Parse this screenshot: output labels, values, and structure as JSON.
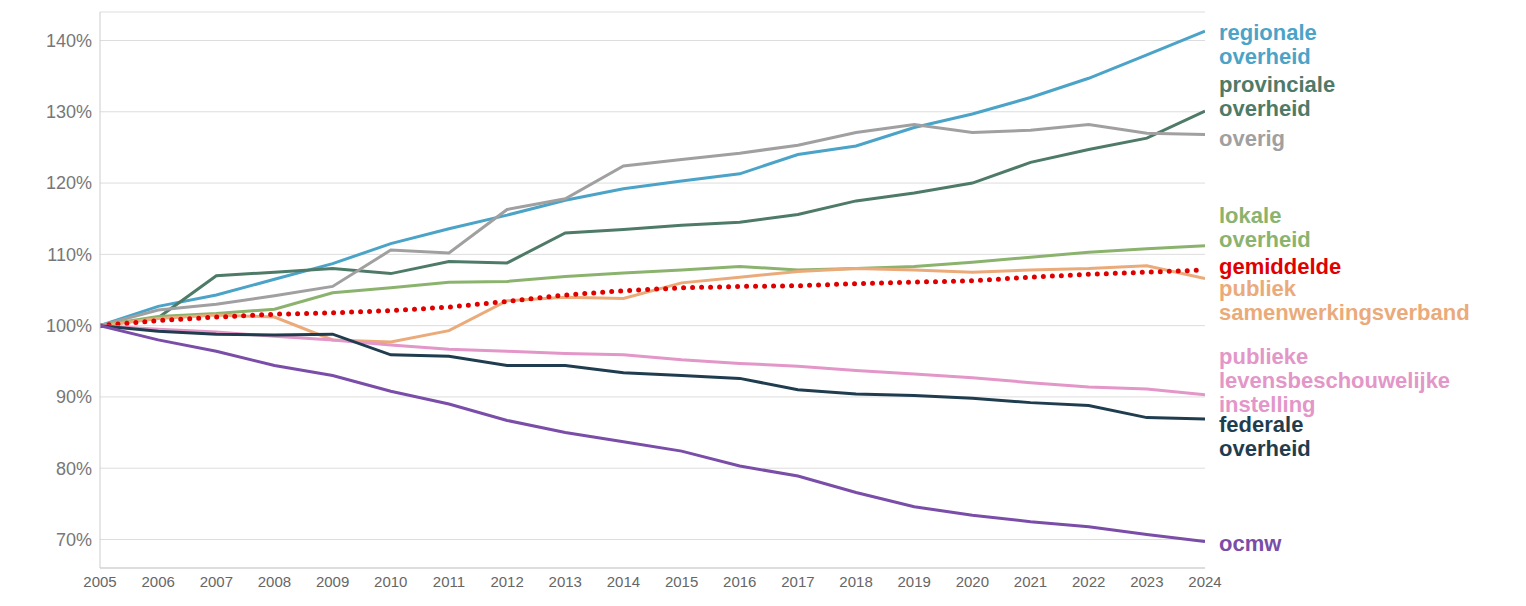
{
  "chart_data": {
    "type": "line",
    "x": [
      2005,
      2006,
      2007,
      2008,
      2009,
      2010,
      2011,
      2012,
      2013,
      2014,
      2015,
      2016,
      2017,
      2018,
      2019,
      2020,
      2021,
      2022,
      2023,
      2024
    ],
    "xlim": [
      2005,
      2024
    ],
    "xticks": [
      2005,
      2006,
      2007,
      2008,
      2009,
      2010,
      2011,
      2012,
      2013,
      2014,
      2015,
      2016,
      2017,
      2018,
      2019,
      2020,
      2021,
      2022,
      2023,
      2024
    ],
    "ylim": [
      66,
      144
    ],
    "yticks": [
      {
        "value": 70,
        "label": "70%"
      },
      {
        "value": 80,
        "label": "80%"
      },
      {
        "value": 90,
        "label": "90%"
      },
      {
        "value": 100,
        "label": "100%"
      },
      {
        "value": 110,
        "label": "110%"
      },
      {
        "value": 120,
        "label": "120%"
      },
      {
        "value": 130,
        "label": "130%"
      },
      {
        "value": 140,
        "label": "140%"
      }
    ],
    "grid": true,
    "series": [
      {
        "name": "regionale overheid",
        "color": "#4ba3c8",
        "line_style": "solid",
        "values": [
          100,
          102.7,
          104.3,
          106.5,
          108.7,
          111.5,
          113.6,
          115.5,
          117.6,
          119.2,
          120.3,
          121.3,
          124,
          125.2,
          127.8,
          129.7,
          132,
          134.7,
          138,
          141.3
        ]
      },
      {
        "name": "provinciale overheid",
        "color": "#4e7a68",
        "line_style": "solid",
        "values": [
          100,
          101.1,
          107,
          107.5,
          108,
          107.3,
          109,
          108.8,
          113,
          113.5,
          114.1,
          114.5,
          115.6,
          117.5,
          118.6,
          120,
          122.9,
          124.7,
          126.3,
          130.1
        ]
      },
      {
        "name": "overig",
        "color": "#a0a0a0",
        "line_style": "solid",
        "values": [
          100,
          102.2,
          103,
          104.2,
          105.5,
          110.6,
          110.2,
          116.3,
          117.8,
          122.4,
          123.3,
          124.2,
          125.3,
          127.1,
          128.2,
          127.1,
          127.4,
          128.2,
          127,
          126.8
        ]
      },
      {
        "name": "lokale overheid",
        "color": "#8bb36e",
        "line_style": "solid",
        "values": [
          100,
          101.3,
          101.7,
          102.3,
          104.6,
          105.3,
          106.1,
          106.2,
          106.9,
          107.4,
          107.8,
          108.3,
          107.8,
          108,
          108.3,
          108.9,
          109.6,
          110.3,
          110.8,
          111.2
        ]
      },
      {
        "name": "publiek samenwerkingsverband",
        "color": "#ebaa7a",
        "line_style": "solid",
        "values": [
          100,
          101,
          101.5,
          101.2,
          98,
          97.7,
          99.3,
          103.5,
          104,
          103.8,
          106,
          106.8,
          107.6,
          108,
          107.8,
          107.5,
          107.8,
          108,
          108.4,
          106.6
        ]
      },
      {
        "name": "gemiddelde",
        "color": "#e00000",
        "line_style": "dotted",
        "values": [
          100,
          100.7,
          101.2,
          101.6,
          101.8,
          102.1,
          102.6,
          103.4,
          104.3,
          104.9,
          105.3,
          105.5,
          105.6,
          105.9,
          106.1,
          106.3,
          106.8,
          107.2,
          107.5,
          107.8
        ]
      },
      {
        "name": "publieke levensbeschouwelijke instelling",
        "color": "#e396c8",
        "line_style": "solid",
        "values": [
          100,
          99.5,
          99.1,
          98.5,
          98,
          97.3,
          96.7,
          96.4,
          96.1,
          95.9,
          95.2,
          94.7,
          94.3,
          93.7,
          93.2,
          92.7,
          92,
          91.4,
          91.1,
          90.3
        ]
      },
      {
        "name": "federale overheid",
        "color": "#1f3d4f",
        "line_style": "solid",
        "values": [
          100,
          99.2,
          98.8,
          98.7,
          98.8,
          95.9,
          95.7,
          94.4,
          94.4,
          93.4,
          93,
          92.6,
          91,
          90.4,
          90.2,
          89.8,
          89.2,
          88.8,
          87.1,
          86.9
        ]
      },
      {
        "name": "ocmw",
        "color": "#7a4da8",
        "line_style": "solid",
        "values": [
          100,
          98,
          96.4,
          94.4,
          93,
          90.8,
          89,
          86.7,
          85,
          83.7,
          82.4,
          80.3,
          78.9,
          76.6,
          74.6,
          73.4,
          72.5,
          71.8,
          70.7,
          69.7
        ]
      }
    ]
  }
}
